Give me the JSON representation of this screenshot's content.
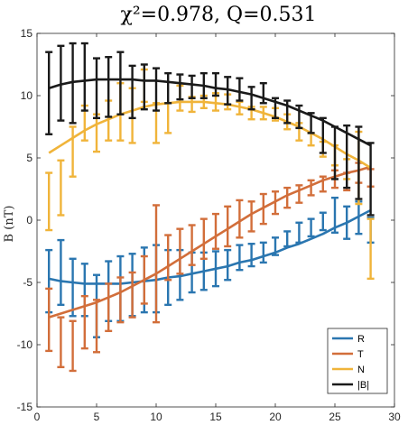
{
  "chart_data": {
    "type": "line",
    "title": "χ²=0.978, Q=0.531",
    "xlabel": "",
    "ylabel": "B (nT)",
    "xlim": [
      0,
      30
    ],
    "ylim": [
      -15,
      15
    ],
    "xticks": [
      0,
      5,
      10,
      15,
      20,
      25,
      30
    ],
    "yticks": [
      -15,
      -10,
      -5,
      0,
      5,
      10,
      15
    ],
    "grid": false,
    "legend_position": "bottom-right",
    "x": [
      1,
      2,
      3,
      4,
      5,
      6,
      7,
      8,
      9,
      10,
      11,
      12,
      13,
      14,
      15,
      16,
      17,
      18,
      19,
      20,
      21,
      22,
      23,
      24,
      25,
      26,
      27,
      28
    ],
    "series": [
      {
        "name": "R",
        "color": "#2a76b0",
        "values": [
          -4.9,
          -4.2,
          -5.4,
          -5.6,
          -6.9,
          -5.7,
          -5.5,
          -5.2,
          -4.8,
          -4.7,
          -4.6,
          -4.4,
          -4.2,
          -4.1,
          -3.9,
          -3.6,
          -3.0,
          -2.8,
          -2.6,
          -2.1,
          -1.5,
          -1.0,
          -0.6,
          -0.1,
          0.4,
          -0.2,
          0.2,
          -0.8
        ],
        "err": [
          2.5,
          2.6,
          2.3,
          2.1,
          2.5,
          2.4,
          2.6,
          2.5,
          2.6,
          2.7,
          2.2,
          2.0,
          1.6,
          1.5,
          1.4,
          1.2,
          1.0,
          0.9,
          0.8,
          0.7,
          0.6,
          0.8,
          0.7,
          0.7,
          1.4,
          1.3,
          1.3,
          1.0
        ],
        "fit": [
          -4.7,
          -4.9,
          -5.0,
          -5.1,
          -5.1,
          -5.1,
          -5.1,
          -5.0,
          -4.9,
          -4.8,
          -4.6,
          -4.5,
          -4.3,
          -4.1,
          -3.9,
          -3.7,
          -3.4,
          -3.2,
          -2.9,
          -2.6,
          -2.2,
          -1.9,
          -1.5,
          -1.1,
          -0.6,
          -0.2,
          0.3,
          0.8
        ]
      },
      {
        "name": "T",
        "color": "#d26e3a",
        "values": [
          -8.0,
          -9.8,
          -10.1,
          -8.2,
          -8.5,
          -7.0,
          -6.4,
          -6.0,
          -4.8,
          -3.5,
          -3.0,
          -2.5,
          -2.0,
          -1.5,
          -0.9,
          -0.5,
          0.1,
          0.3,
          0.9,
          1.4,
          1.8,
          2.1,
          2.6,
          2.9,
          3.3,
          3.1,
          3.8,
          3.4
        ],
        "err": [
          2.5,
          2.0,
          2.0,
          2.1,
          2.1,
          1.9,
          1.8,
          1.8,
          1.9,
          4.7,
          1.8,
          1.8,
          1.6,
          1.6,
          1.4,
          1.6,
          1.5,
          1.2,
          1.2,
          0.9,
          0.8,
          0.7,
          0.6,
          0.6,
          0.7,
          0.7,
          0.8,
          0.7
        ],
        "fit": [
          -7.8,
          -7.5,
          -7.2,
          -6.9,
          -6.6,
          -6.2,
          -5.8,
          -5.3,
          -4.8,
          -4.3,
          -3.7,
          -3.1,
          -2.5,
          -1.9,
          -1.3,
          -0.7,
          -0.1,
          0.5,
          1.0,
          1.5,
          2.0,
          2.4,
          2.8,
          3.2,
          3.5,
          3.8,
          4.0,
          4.3
        ]
      },
      {
        "name": "N",
        "color": "#f0b43a",
        "values": [
          1.5,
          2.6,
          5.5,
          7.8,
          7.0,
          8.0,
          8.7,
          8.4,
          10.8,
          7.8,
          8.2,
          9.8,
          9.3,
          9.5,
          9.5,
          9.5,
          9.0,
          8.6,
          8.6,
          8.5,
          7.9,
          7.1,
          6.5,
          5.7,
          5.2,
          4.1,
          4.2,
          -2.3
        ],
        "err": [
          2.3,
          2.2,
          2.0,
          1.4,
          1.5,
          1.6,
          2.3,
          2.2,
          1.3,
          1.6,
          1.2,
          1.0,
          0.6,
          0.5,
          0.7,
          0.6,
          0.5,
          0.5,
          0.5,
          0.5,
          0.6,
          0.7,
          0.5,
          0.6,
          0.8,
          0.8,
          2.9,
          2.4
        ],
        "fit": [
          5.4,
          6.0,
          6.6,
          7.2,
          7.7,
          8.1,
          8.5,
          8.8,
          9.1,
          9.3,
          9.4,
          9.5,
          9.5,
          9.5,
          9.4,
          9.3,
          9.1,
          8.9,
          8.6,
          8.3,
          7.9,
          7.5,
          7.0,
          6.5,
          5.9,
          5.3,
          4.8,
          4.2
        ]
      },
      {
        "name": "|B|",
        "color": "#1a1a1a",
        "values": [
          10.2,
          11.0,
          11.0,
          11.5,
          10.6,
          10.7,
          11.0,
          10.3,
          10.7,
          10.5,
          10.6,
          10.7,
          10.7,
          10.8,
          10.9,
          10.4,
          10.5,
          9.8,
          10.2,
          9.0,
          8.7,
          8.3,
          7.8,
          6.8,
          5.4,
          5.1,
          4.6,
          3.3
        ],
        "err": [
          3.3,
          3.0,
          3.2,
          2.7,
          2.4,
          2.4,
          2.5,
          2.1,
          1.8,
          1.7,
          1.2,
          1.0,
          0.9,
          1.0,
          0.9,
          1.1,
          0.9,
          0.9,
          0.8,
          0.8,
          0.9,
          0.9,
          0.8,
          1.4,
          2.1,
          2.5,
          2.9,
          2.9
        ],
        "fit": [
          10.6,
          10.9,
          11.1,
          11.2,
          11.3,
          11.3,
          11.3,
          11.3,
          11.2,
          11.2,
          11.1,
          11.0,
          10.9,
          10.8,
          10.6,
          10.5,
          10.3,
          10.1,
          9.8,
          9.5,
          9.2,
          8.8,
          8.4,
          8.0,
          7.5,
          7.0,
          6.5,
          6.0
        ]
      }
    ]
  }
}
